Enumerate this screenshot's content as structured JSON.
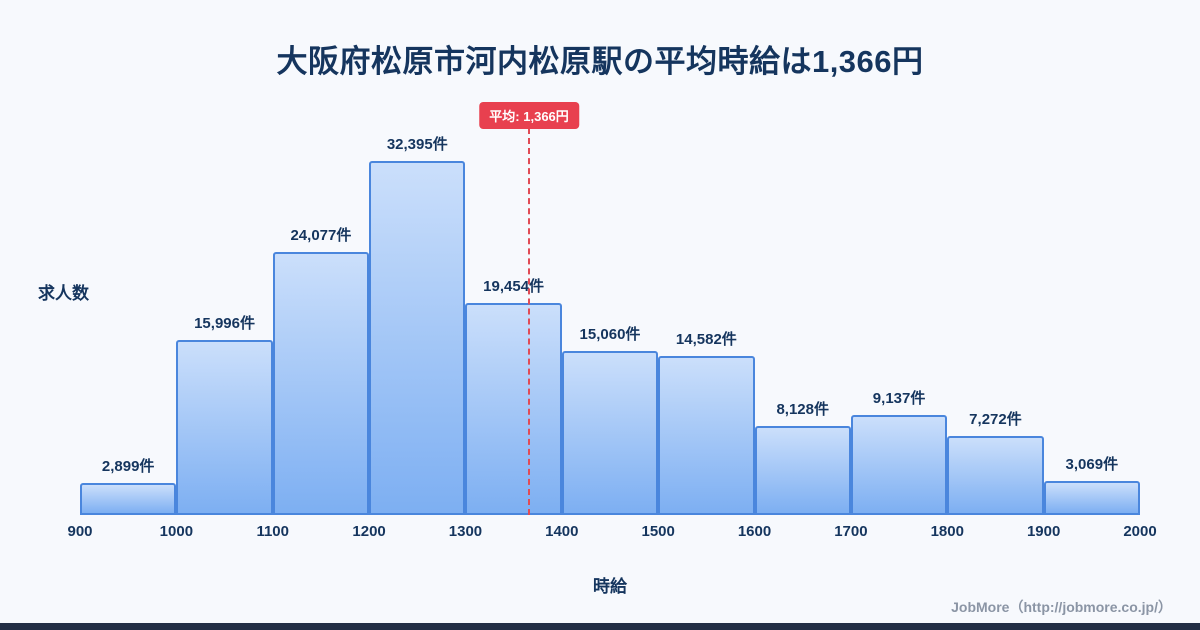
{
  "footer": "JobMore（http://jobmore.co.jp/）",
  "chart_data": {
    "type": "bar",
    "title": "大阪府松原市河内松原駅の平均時給は1,366円",
    "xlabel": "時給",
    "ylabel": "求人数",
    "x_ticks": [
      900,
      1000,
      1100,
      1200,
      1300,
      1400,
      1500,
      1600,
      1700,
      1800,
      1900,
      2000
    ],
    "values": [
      2899,
      15996,
      24077,
      32395,
      19454,
      15060,
      14582,
      8128,
      9137,
      7272,
      3069
    ],
    "labels": [
      "2,899件",
      "15,996件",
      "24,077件",
      "32,395件",
      "19,454件",
      "15,060件",
      "14,582件",
      "8,128件",
      "9,137件",
      "7,272件",
      "3,069件"
    ],
    "average": 1366,
    "average_label": "平均: 1,366円",
    "xlim": [
      900,
      2000
    ],
    "ylim": [
      0,
      38000
    ],
    "grid": false,
    "legend": false,
    "colors": {
      "bar_fill_top": "#cbdffb",
      "bar_fill_bottom": "#7daff2",
      "bar_border": "#4a86dd",
      "average_line": "#e14b55",
      "average_badge_bg": "#e8404f",
      "text": "#15355e",
      "footer_text": "#8b95a5",
      "background": "#f7f9fd",
      "bottom_bar": "#232e45"
    }
  }
}
